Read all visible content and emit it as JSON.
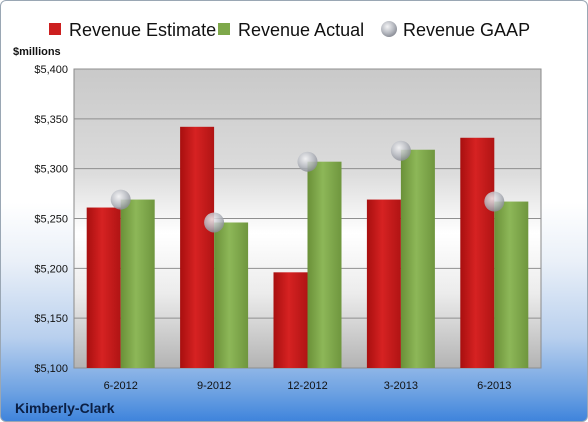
{
  "company": "Kimberly-Clark",
  "chart_data": {
    "type": "bar",
    "title": "",
    "ylabel": "$millions",
    "xlabel": "",
    "categories": [
      "6-2012",
      "9-2012",
      "12-2012",
      "3-2013",
      "6-2013"
    ],
    "series": [
      {
        "name": "Revenue Estimate",
        "type": "bar",
        "color": "#cc1f1f",
        "values": [
          5261,
          5342,
          5196,
          5269,
          5331
        ]
      },
      {
        "name": "Revenue Actual",
        "type": "bar",
        "color": "#7ea84a",
        "values": [
          5269,
          5246,
          5307,
          5319,
          5267
        ]
      },
      {
        "name": "Revenue GAAP",
        "type": "scatter",
        "color": "#b8bcc4",
        "values": [
          5269,
          5246,
          5307,
          5318,
          5267
        ]
      }
    ],
    "ylim": [
      5100,
      5400
    ],
    "yticks": [
      5100,
      5150,
      5200,
      5250,
      5300,
      5350,
      5400
    ],
    "ytick_labels": [
      "$5,100",
      "$5,150",
      "$5,200",
      "$5,250",
      "$5,300",
      "$5,350",
      "$5,400"
    ],
    "grid": true,
    "legend": "top"
  }
}
